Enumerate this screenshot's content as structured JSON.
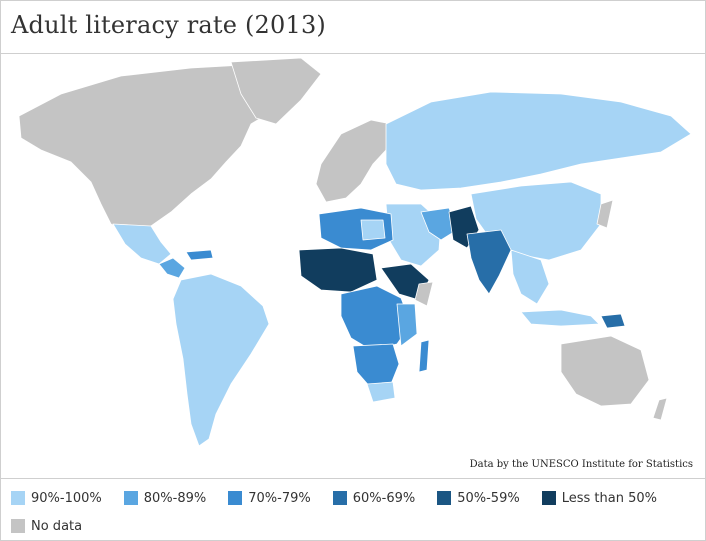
{
  "title": "Adult literacy rate (2013)",
  "credit": "Data by the UNESCO Institute for Statistics",
  "legend": [
    {
      "label": "90%-100%",
      "color": "#a6d4f5"
    },
    {
      "label": "80%-89%",
      "color": "#5aa6e1"
    },
    {
      "label": "70%-79%",
      "color": "#3a8bd1"
    },
    {
      "label": "60%-69%",
      "color": "#276ea8"
    },
    {
      "label": "50%-59%",
      "color": "#1b5683"
    },
    {
      "label": "Less than 50%",
      "color": "#113d5e"
    },
    {
      "label": "No data",
      "color": "#c4c4c4"
    }
  ],
  "colors": {
    "no_data": "#c4c4c4",
    "ocean": "#ffffff",
    "border": "#ffffff"
  }
}
